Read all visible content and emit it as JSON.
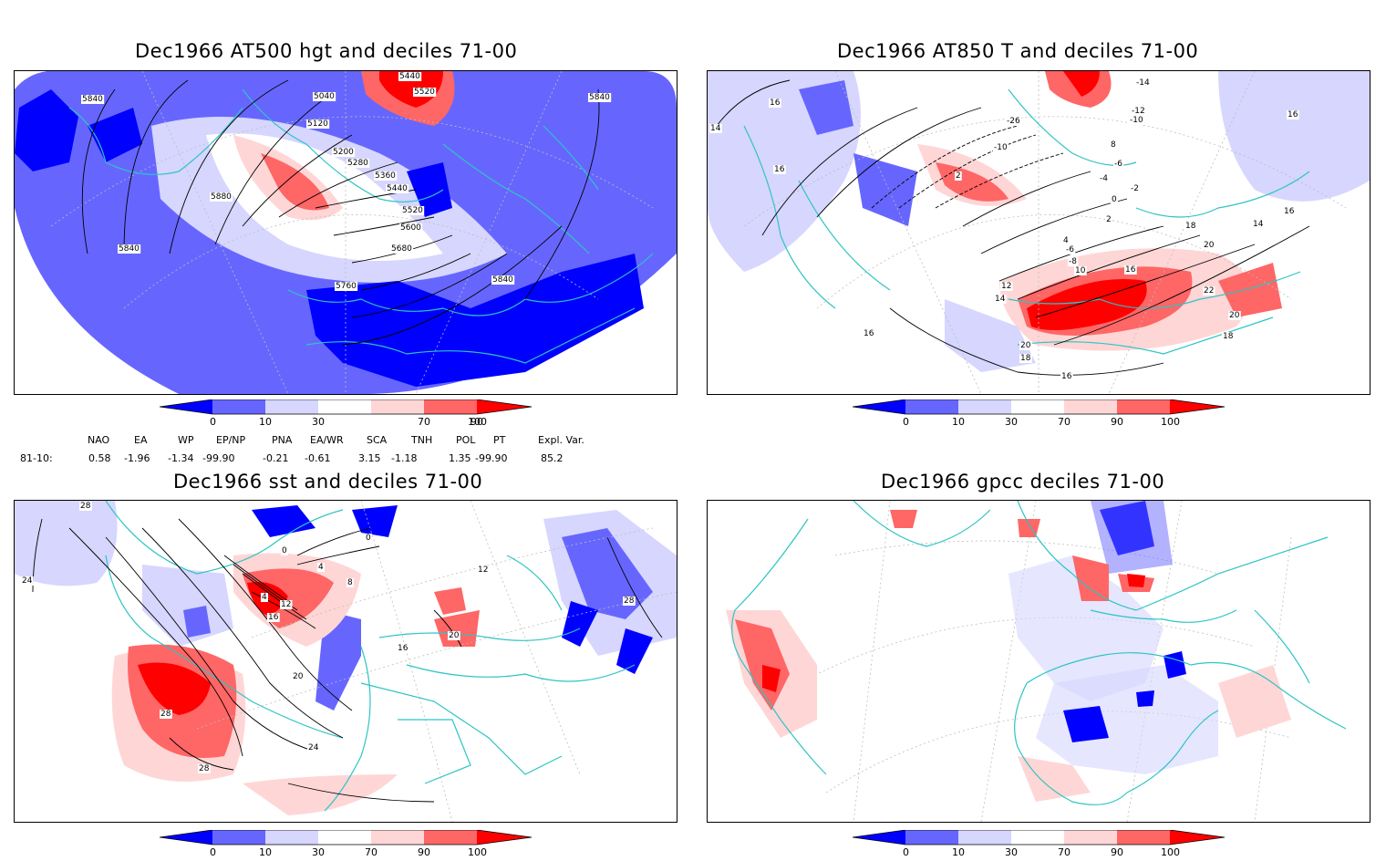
{
  "panels": [
    {
      "title": "Dec1966 AT500 hgt and deciles 71-00",
      "contour_labels": [
        "5840",
        "5040",
        "5440",
        "5520",
        "5120",
        "5200",
        "5280",
        "5360",
        "5440",
        "5520",
        "5600",
        "5680",
        "5760",
        "5840",
        "5880",
        "5840",
        "5840"
      ]
    },
    {
      "title": "Dec1966 AT850 T and deciles 71-00",
      "contour_labels": [
        "16",
        "14",
        "16",
        "2",
        "-10",
        "-14",
        "-12",
        "-10",
        "-26",
        "8",
        "-6",
        "-4",
        "-2",
        "0",
        "2",
        "4",
        "-6",
        "-8",
        "10",
        "12",
        "14",
        "16",
        "18",
        "20",
        "22",
        "20",
        "18",
        "16",
        "14",
        "16",
        "16",
        "20",
        "18",
        "16"
      ]
    },
    {
      "title": "Dec1966 sst and deciles 71-00",
      "contour_labels": [
        "28",
        "24",
        "0",
        "4",
        "0",
        "8",
        "4",
        "12",
        "16",
        "20",
        "24",
        "28",
        "28",
        "16",
        "20",
        "12",
        "28"
      ]
    },
    {
      "title": "Dec1966 gpcc deciles 71-00",
      "contour_labels": []
    }
  ],
  "colorbar": {
    "colors": [
      "#0000ff",
      "#6666ff",
      "#d6d6ff",
      "#ffffff",
      "#ffd6d6",
      "#ff6666",
      "#ff0000"
    ],
    "tick_labels": [
      "0",
      "10",
      "30",
      "70",
      "90",
      "100"
    ]
  },
  "indices": {
    "headers": [
      "NAO",
      "EA",
      "WP",
      "EP/NP",
      "PNA",
      "EA/WR",
      "SCA",
      "TNH",
      "POL",
      "PT",
      "Expl. Var."
    ],
    "row_label": "81-10:",
    "values": [
      "0.58",
      "-1.96",
      "-1.34",
      "-99.90",
      "-0.21",
      "-0.61",
      "3.15",
      "-1.18",
      "1.35",
      "-99.90",
      "85.2"
    ]
  }
}
